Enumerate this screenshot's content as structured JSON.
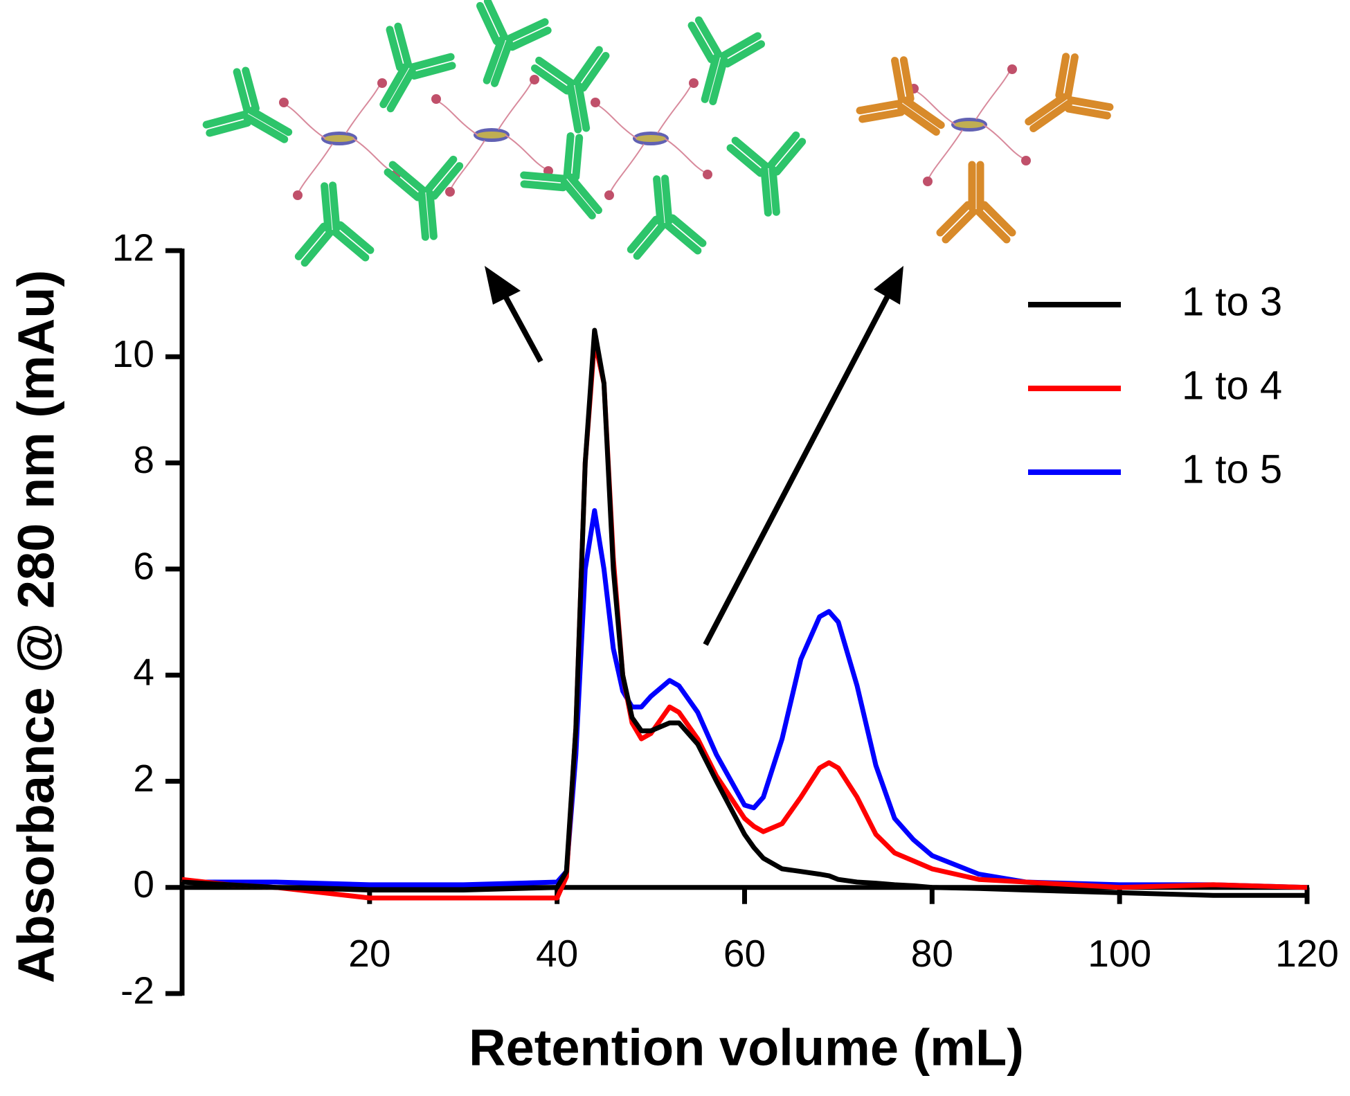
{
  "chart_data": {
    "type": "line",
    "xlabel": "Retention volume (mL)",
    "ylabel": "Absorbance @ 280 nm (mAu)",
    "xlim": [
      0,
      120
    ],
    "ylim": [
      -2,
      12
    ],
    "xticks": [
      20,
      40,
      60,
      80,
      100,
      120
    ],
    "yticks": [
      -2,
      0,
      2,
      4,
      6,
      8,
      10,
      12
    ],
    "legend": "upper right",
    "x": [
      0,
      5,
      10,
      20,
      30,
      40,
      41,
      42,
      43,
      44,
      45,
      46,
      47,
      48,
      49,
      50,
      52,
      53,
      55,
      57,
      60,
      61,
      62,
      64,
      66,
      68,
      69,
      70,
      72,
      74,
      76,
      78,
      80,
      85,
      90,
      100,
      110,
      120
    ],
    "series": [
      {
        "name": "1 to 3",
        "color": "#000000",
        "values": [
          0.1,
          0.05,
          0.0,
          -0.05,
          -0.05,
          0.0,
          0.3,
          3,
          8,
          10.5,
          9.5,
          6,
          4,
          3.2,
          2.95,
          2.95,
          3.1,
          3.1,
          2.7,
          2.0,
          1.0,
          0.75,
          0.55,
          0.35,
          0.3,
          0.25,
          0.22,
          0.15,
          0.1,
          0.08,
          0.05,
          0.03,
          0.0,
          -0.02,
          -0.05,
          -0.1,
          -0.15,
          -0.15
        ]
      },
      {
        "name": "1 to 4",
        "color": "#ff0000",
        "values": [
          0.15,
          0.05,
          0.0,
          -0.2,
          -0.2,
          -0.2,
          0.2,
          3,
          8,
          10.3,
          9.5,
          6.2,
          4,
          3.1,
          2.8,
          2.9,
          3.4,
          3.3,
          2.8,
          2.1,
          1.3,
          1.15,
          1.05,
          1.2,
          1.7,
          2.25,
          2.35,
          2.25,
          1.7,
          1.0,
          0.65,
          0.5,
          0.35,
          0.15,
          0.1,
          0.0,
          0.05,
          0.0
        ]
      },
      {
        "name": "1 to 5",
        "color": "#0000ff",
        "values": [
          0.1,
          0.1,
          0.1,
          0.05,
          0.05,
          0.1,
          0.3,
          2.5,
          6,
          7.1,
          6,
          4.5,
          3.7,
          3.4,
          3.4,
          3.6,
          3.9,
          3.8,
          3.3,
          2.5,
          1.55,
          1.5,
          1.7,
          2.8,
          4.3,
          5.1,
          5.2,
          5.0,
          3.8,
          2.3,
          1.3,
          0.9,
          0.6,
          0.25,
          0.1,
          0.05,
          0.05,
          0.0
        ]
      }
    ]
  }
}
